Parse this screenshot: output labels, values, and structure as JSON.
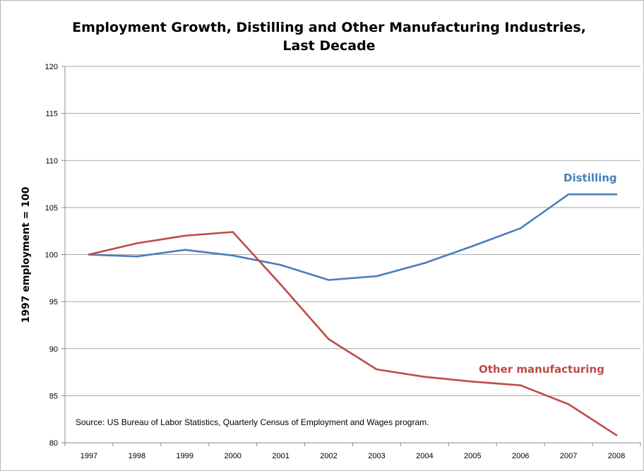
{
  "chart_data": {
    "type": "line",
    "title": "Employment Growth, Distilling and Other Manufacturing Industries, Last Decade",
    "title_lines": [
      "Employment Growth, Distilling and Other Manufacturing Industries,",
      "Last Decade"
    ],
    "xlabel": "",
    "ylabel": "1997 employment = 100",
    "categories": [
      "1997",
      "1998",
      "1999",
      "2000",
      "2001",
      "2002",
      "2003",
      "2004",
      "2005",
      "2006",
      "2007",
      "2008"
    ],
    "ylim": [
      80,
      120
    ],
    "yticks": [
      80,
      85,
      90,
      95,
      100,
      105,
      110,
      115,
      120
    ],
    "grid": true,
    "legend": "inline labels",
    "series": [
      {
        "name": "Distilling",
        "color": "#4a7ebb",
        "values": [
          100,
          99.8,
          100.5,
          99.9,
          98.9,
          97.3,
          97.7,
          99.1,
          100.9,
          102.8,
          106.4,
          106.4
        ]
      },
      {
        "name": "Other manufacturing",
        "color": "#be4b48",
        "values": [
          100,
          101.2,
          102.0,
          102.4,
          96.8,
          91.0,
          87.8,
          87.0,
          86.5,
          86.1,
          84.1,
          80.8
        ]
      }
    ],
    "annotations": [
      {
        "text": "Source: US Bureau of Labor Statistics, Quarterly Census of Employment and Wages program."
      }
    ]
  }
}
